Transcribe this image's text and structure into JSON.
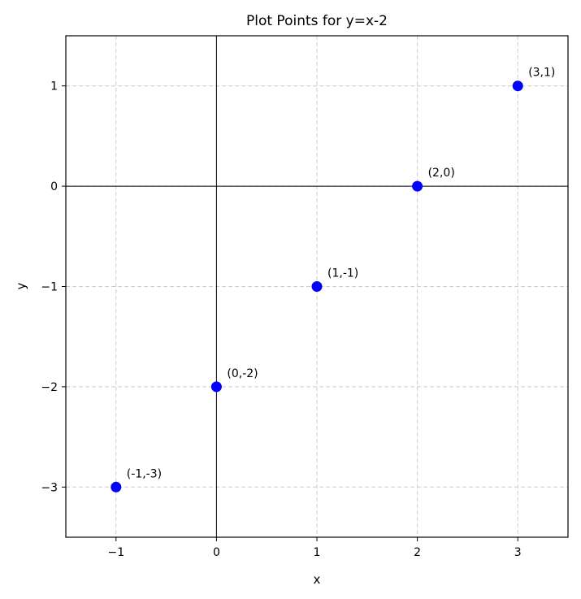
{
  "chart_data": {
    "type": "scatter",
    "title": "Plot Points for y=x-2",
    "xlabel": "x",
    "ylabel": "y",
    "xlim": [
      -1.5,
      3.5
    ],
    "ylim": [
      -3.5,
      1.5
    ],
    "xticks": [
      -1,
      0,
      1,
      2,
      3
    ],
    "yticks": [
      -3,
      -2,
      -1,
      0,
      1
    ],
    "xtick_labels": [
      "−1",
      "0",
      "1",
      "2",
      "3"
    ],
    "ytick_labels": [
      "−3",
      "−2",
      "−1",
      "0",
      "1"
    ],
    "grid": true,
    "zero_lines": true,
    "point_color": "#0000ff",
    "points": [
      {
        "x": -1,
        "y": -3,
        "label": "(-1,-3)"
      },
      {
        "x": 0,
        "y": -2,
        "label": "(0,-2)"
      },
      {
        "x": 1,
        "y": -1,
        "label": "(1,-1)"
      },
      {
        "x": 2,
        "y": 0,
        "label": "(2,0)"
      },
      {
        "x": 3,
        "y": 1,
        "label": "(3,1)"
      }
    ]
  }
}
